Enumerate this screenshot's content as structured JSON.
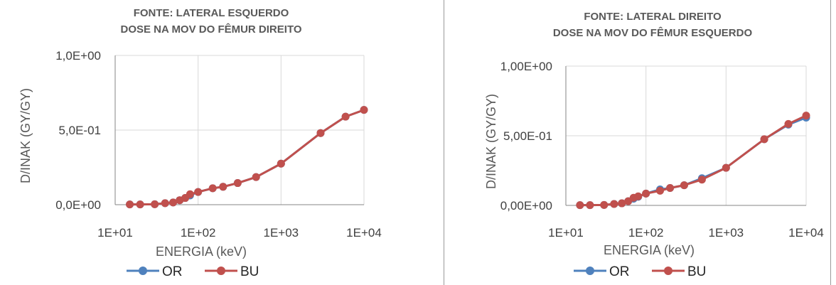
{
  "chart_data": [
    {
      "type": "line",
      "title": [
        "FONTE: LATERAL ESQUERDO",
        "DOSE NA MOV DO FÊMUR DIREITO"
      ],
      "xlabel": "ENERGIA (keV)",
      "ylabel": "D/INAK (GY/GY)",
      "x_scale": "log",
      "xlim": [
        10,
        10000
      ],
      "ylim": [
        0,
        1
      ],
      "x_ticks": [
        "1E+01",
        "1E+02",
        "1E+03",
        "1E+04"
      ],
      "y_ticks": [
        "0,0E+00",
        "5,0E-01",
        "1,0E+00"
      ],
      "grid": true,
      "legend_position": "bottom",
      "series": [
        {
          "name": "OR",
          "color": "#4f81bd",
          "x": [
            15,
            20,
            30,
            40,
            50,
            60,
            70,
            80,
            100,
            150,
            200,
            300,
            500,
            1000,
            3000,
            6000,
            10000
          ],
          "y": [
            0.002,
            0.002,
            0.003,
            0.01,
            0.015,
            0.03,
            0.045,
            0.062,
            0.085,
            0.11,
            0.12,
            0.145,
            0.185,
            0.275,
            0.48,
            0.59,
            0.635
          ]
        },
        {
          "name": "BU",
          "color": "#c0504d",
          "x": [
            15,
            20,
            30,
            40,
            50,
            60,
            70,
            80,
            100,
            150,
            200,
            300,
            500,
            1000,
            3000,
            6000,
            10000
          ],
          "y": [
            0.002,
            0.002,
            0.003,
            0.01,
            0.015,
            0.03,
            0.045,
            0.07,
            0.085,
            0.11,
            0.12,
            0.145,
            0.185,
            0.275,
            0.48,
            0.59,
            0.635
          ]
        }
      ]
    },
    {
      "type": "line",
      "title": [
        "FONTE: LATERAL DIREITO",
        "DOSE NA MOV DO FÊMUR ESQUERDO"
      ],
      "xlabel": "ENERGIA (keV)",
      "ylabel": "D/INAK (GY/GY)",
      "x_scale": "log",
      "xlim": [
        10,
        10000
      ],
      "ylim": [
        0,
        1
      ],
      "x_ticks": [
        "1E+01",
        "1E+02",
        "1E+03",
        "1E+04"
      ],
      "y_ticks": [
        "0,00E+00",
        "5,00E-01",
        "1,00E+00"
      ],
      "grid": true,
      "legend_position": "bottom",
      "series": [
        {
          "name": "OR",
          "color": "#4f81bd",
          "x": [
            15,
            20,
            30,
            40,
            50,
            60,
            70,
            80,
            100,
            150,
            200,
            300,
            500,
            1000,
            3000,
            6000,
            10000
          ],
          "y": [
            0.002,
            0.002,
            0.003,
            0.01,
            0.015,
            0.03,
            0.048,
            0.062,
            0.085,
            0.115,
            0.125,
            0.145,
            0.195,
            0.27,
            0.475,
            0.58,
            0.63
          ]
        },
        {
          "name": "BU",
          "color": "#c0504d",
          "x": [
            15,
            20,
            30,
            40,
            50,
            60,
            70,
            80,
            100,
            150,
            200,
            300,
            500,
            1000,
            3000,
            6000,
            10000
          ],
          "y": [
            0.002,
            0.002,
            0.003,
            0.01,
            0.015,
            0.03,
            0.055,
            0.065,
            0.085,
            0.105,
            0.125,
            0.145,
            0.185,
            0.27,
            0.475,
            0.585,
            0.645
          ]
        }
      ]
    }
  ]
}
